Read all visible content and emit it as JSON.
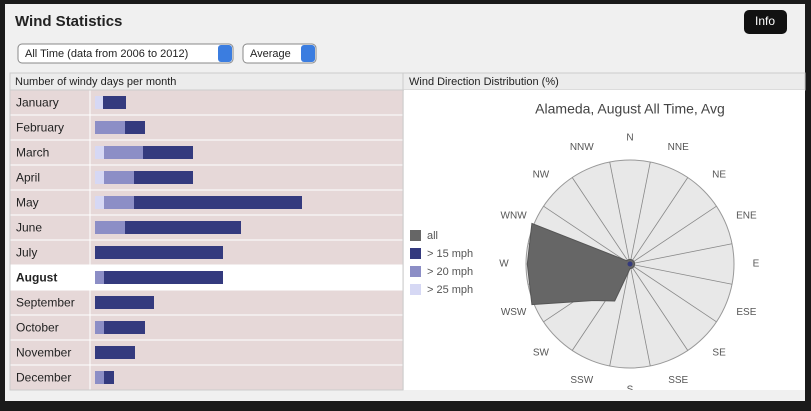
{
  "header": {
    "title": "Wind Statistics",
    "button": "Info"
  },
  "controls": [
    "All Time (data from 2006 to 2012)",
    "Average"
  ],
  "chart_data": [
    {
      "type": "bar",
      "title": "Number of windy days per month",
      "categories": [
        "January",
        "February",
        "March",
        "April",
        "May",
        "June",
        "July",
        "August",
        "September",
        "October",
        "November",
        "December"
      ],
      "highlight": 7,
      "series": [
        {
          "name": "> 15 mph",
          "color": "#343a7e",
          "values": [
            2.3,
            2.0,
            5.0,
            5.9,
            16.8,
            11.6,
            12.8,
            11.9,
            5.9,
            4.1,
            4.0,
            1.0
          ]
        },
        {
          "name": "> 20 mph",
          "color": "#8c8ec6",
          "values": [
            0,
            3.0,
            3.9,
            3.0,
            3.0,
            3.0,
            0,
            0.9,
            0,
            0.9,
            0,
            0.9
          ]
        },
        {
          "name": "> 25 mph",
          "color": "#d6d8f4",
          "values": [
            0.8,
            0,
            0.9,
            0.9,
            0.9,
            0,
            0,
            0,
            0,
            0,
            0,
            0
          ]
        }
      ]
    },
    {
      "type": "radar",
      "title": "Wind Direction Distribution (%)",
      "subtitle": "Alameda, August All Time, Avg",
      "categories": [
        "N",
        "NNE",
        "NE",
        "ENE",
        "E",
        "ESE",
        "SE",
        "SSE",
        "S",
        "SSW",
        "SW",
        "WSW",
        "W",
        "WNW",
        "NW",
        "NNW"
      ],
      "series": [
        {
          "name": "all",
          "color": "#666666",
          "values": [
            0.8,
            0.8,
            0.8,
            0.8,
            0.8,
            0.8,
            0.8,
            0.8,
            0.8,
            6.9,
            8.9,
            18.3,
            17.7,
            18.3,
            0.8,
            0.8
          ]
        }
      ]
    }
  ]
}
